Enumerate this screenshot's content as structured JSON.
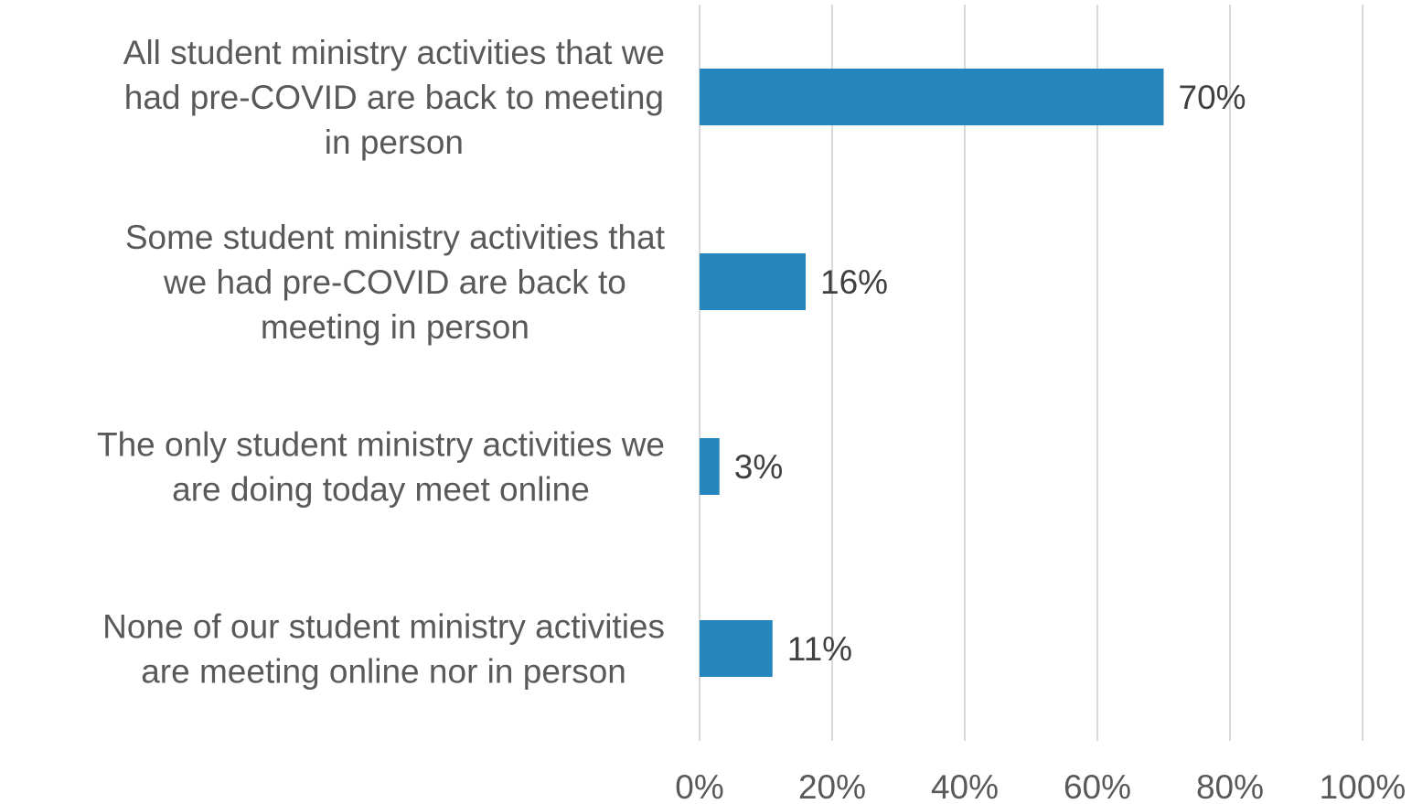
{
  "chart_data": {
    "type": "bar",
    "orientation": "horizontal",
    "categories": [
      [
        "All student ministry activities that we",
        "had pre-COVID are back to meeting",
        "in person"
      ],
      [
        "Some student ministry activities that",
        "we had pre-COVID are back to",
        "meeting in person"
      ],
      [
        "The only student ministry activities we",
        "are doing today meet online"
      ],
      [
        "None of our student ministry activities",
        "are meeting online nor in person"
      ]
    ],
    "values": [
      70,
      16,
      3,
      11
    ],
    "data_labels": [
      "70%",
      "16%",
      "3%",
      "11%"
    ],
    "xlim": [
      0,
      100
    ],
    "x_ticks": [
      0,
      20,
      40,
      60,
      80,
      100
    ],
    "x_tick_labels": [
      "0%",
      "20%",
      "40%",
      "60%",
      "80%",
      "100%"
    ],
    "grid": true,
    "bar_color": "#2586BE",
    "title": "",
    "xlabel": "",
    "ylabel": ""
  }
}
